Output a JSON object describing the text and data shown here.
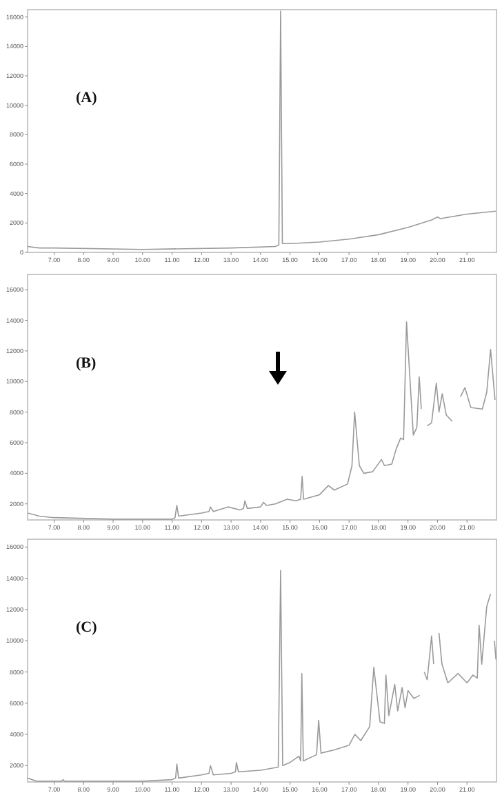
{
  "chart_data": [
    {
      "type": "line",
      "title": "(A)",
      "xlim": [
        6.1,
        22.0
      ],
      "ylim": [
        0,
        16500
      ],
      "xticks": [
        {
          "value": 7,
          "label": "7.00"
        },
        {
          "value": 8,
          "label": "8.00"
        },
        {
          "value": 9,
          "label": "9.00"
        },
        {
          "value": 10,
          "label": "10.00"
        },
        {
          "value": 11,
          "label": "11.00"
        },
        {
          "value": 12,
          "label": "12.00"
        },
        {
          "value": 13,
          "label": "13.00"
        },
        {
          "value": 14,
          "label": "14.00"
        },
        {
          "value": 15,
          "label": "15.00"
        },
        {
          "value": 16,
          "label": "16.00"
        },
        {
          "value": 17,
          "label": "17.00"
        },
        {
          "value": 18,
          "label": "18.00"
        },
        {
          "value": 19,
          "label": "19.00"
        },
        {
          "value": 20,
          "label": "20.00"
        },
        {
          "value": 21,
          "label": "21.00"
        }
      ],
      "yticks": [
        0,
        2000,
        4000,
        6000,
        8000,
        10000,
        12000,
        14000,
        16000
      ],
      "series": [
        {
          "color": "#9a9a9a",
          "x": [
            6.1,
            6.5,
            7,
            10,
            13,
            14.5,
            14.62,
            14.68,
            14.74,
            15,
            16,
            17,
            18,
            19,
            19.8,
            20,
            20.1,
            21,
            21.98
          ],
          "values": [
            400,
            300,
            300,
            200,
            300,
            400,
            500,
            16400,
            600,
            600,
            700,
            900,
            1200,
            1700,
            2200,
            2400,
            2300,
            2600,
            2800
          ]
        }
      ]
    },
    {
      "type": "line",
      "title": "(B)",
      "xlim": [
        6.1,
        22.0
      ],
      "ylim": [
        950,
        17000
      ],
      "xticks": [
        {
          "value": 7,
          "label": "7.00"
        },
        {
          "value": 8,
          "label": "8.00"
        },
        {
          "value": 9,
          "label": "9.00"
        },
        {
          "value": 10,
          "label": "10.00"
        },
        {
          "value": 11,
          "label": "11.00"
        },
        {
          "value": 12,
          "label": "12.00"
        },
        {
          "value": 13,
          "label": "13.00"
        },
        {
          "value": 14,
          "label": "14.00"
        },
        {
          "value": 15,
          "label": "15.00"
        },
        {
          "value": 16,
          "label": "16.00"
        },
        {
          "value": 17,
          "label": "17.00"
        },
        {
          "value": 18,
          "label": "18.00"
        },
        {
          "value": 19,
          "label": "19.00"
        },
        {
          "value": 20,
          "label": "20.00"
        },
        {
          "value": 21,
          "label": "21.00"
        }
      ],
      "yticks": [
        2000,
        4000,
        6000,
        8000,
        10000,
        12000,
        14000,
        16000
      ],
      "series": [
        {
          "color": "#9a9a9a",
          "x": [
            6.1,
            6.5,
            7,
            9,
            11,
            11.1,
            11.16,
            11.22,
            12,
            12.25,
            12.3,
            12.4,
            12.9,
            13.3,
            13.42,
            13.47,
            13.55,
            14,
            14.1,
            14.2,
            14.5,
            14.9,
            15.2,
            15.36,
            15.41,
            15.46,
            16,
            16.3,
            16.5,
            16.95,
            17.1,
            17.19,
            17.35,
            17.5,
            17.8,
            18.1,
            18.2,
            18.45,
            18.6,
            18.75,
            18.85,
            18.95,
            19.18,
            19.3,
            19.38,
            19.45,
            19.52,
            19.65,
            19.8,
            19.96,
            20.05,
            20.16,
            20.3,
            20.5,
            20.63,
            20.78,
            20.93,
            21.13,
            21.52,
            21.67,
            21.8,
            21.95
          ],
          "values": [
            1400,
            1200,
            1100,
            1000,
            1000,
            1100,
            1900,
            1200,
            1400,
            1500,
            1800,
            1500,
            1800,
            1600,
            1700,
            2200,
            1700,
            1800,
            2100,
            1900,
            2000,
            2300,
            2200,
            2300,
            3800,
            2300,
            2600,
            3200,
            2900,
            3300,
            4500,
            8000,
            4500,
            4000,
            4100,
            4900,
            4500,
            4600,
            5600,
            6300,
            6200,
            13900,
            6500,
            7000,
            10300,
            8200,
            null,
            7100,
            7300,
            9900,
            8000,
            9200,
            7800,
            7400,
            null,
            9000,
            9600,
            8300,
            8200,
            9300,
            12100,
            8800
          ]
        }
      ]
    },
    {
      "type": "line",
      "title": "(C)",
      "xlim": [
        6.1,
        22.0
      ],
      "ylim": [
        950,
        16500
      ],
      "xticks": [
        {
          "value": 7,
          "label": "7.00"
        },
        {
          "value": 8,
          "label": "8.00"
        },
        {
          "value": 9,
          "label": "9.00"
        },
        {
          "value": 10,
          "label": "10.00"
        },
        {
          "value": 11,
          "label": "11.00"
        },
        {
          "value": 12,
          "label": "12.00"
        },
        {
          "value": 13,
          "label": "13.00"
        },
        {
          "value": 14,
          "label": "14.00"
        },
        {
          "value": 15,
          "label": "15.00"
        },
        {
          "value": 16,
          "label": "16.00"
        },
        {
          "value": 17,
          "label": "17.00"
        },
        {
          "value": 18,
          "label": "18.00"
        },
        {
          "value": 19,
          "label": "19.00"
        },
        {
          "value": 20,
          "label": "20.00"
        },
        {
          "value": 21,
          "label": "21.00"
        }
      ],
      "yticks": [
        2000,
        4000,
        6000,
        8000,
        10000,
        12000,
        14000,
        16000
      ],
      "series": [
        {
          "color": "#9a9a9a",
          "x": [
            6.1,
            6.4,
            7.25,
            7.3,
            7.35,
            8,
            10,
            11,
            11.12,
            11.16,
            11.22,
            12,
            12.25,
            12.3,
            12.4,
            13,
            13.15,
            13.18,
            13.25,
            14,
            14.6,
            14.68,
            14.75,
            15,
            15.3,
            15.36,
            15.4,
            15.45,
            15.9,
            15.97,
            16.05,
            16.5,
            17,
            17.2,
            17.4,
            17.7,
            17.84,
            18.05,
            18.2,
            18.25,
            18.35,
            18.55,
            18.65,
            18.8,
            18.9,
            19.0,
            19.2,
            19.4,
            19.45,
            19.55,
            19.65,
            19.8,
            19.87,
            19.93,
            20.05,
            20.15,
            20.35,
            20.7,
            21.0,
            21.2,
            21.35,
            21.41,
            21.5,
            21.67,
            21.8,
            21.87,
            21.93,
            21.98
          ],
          "values": [
            1200,
            1000,
            1000,
            1100,
            1000,
            1000,
            1000,
            1100,
            1200,
            2100,
            1200,
            1400,
            1500,
            2000,
            1400,
            1500,
            1600,
            2200,
            1600,
            1700,
            1900,
            14500,
            2000,
            2200,
            2600,
            2300,
            7900,
            2300,
            2700,
            4900,
            2800,
            3000,
            3300,
            4000,
            3600,
            4500,
            8300,
            4800,
            4700,
            7800,
            5200,
            7200,
            5500,
            7000,
            5700,
            6800,
            6300,
            6500,
            null,
            8000,
            7500,
            10300,
            8500,
            null,
            10500,
            8500,
            7300,
            7900,
            7300,
            7800,
            7600,
            11000,
            8500,
            12200,
            13000,
            null,
            10000,
            8800
          ]
        }
      ]
    }
  ]
}
